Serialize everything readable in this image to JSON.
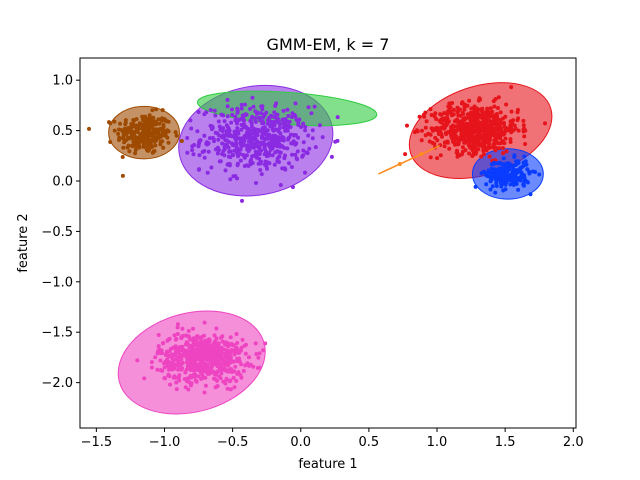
{
  "chart_data": {
    "type": "scatter",
    "title": "GMM-EM, k = 7",
    "xlabel": "feature 1",
    "ylabel": "feature 2",
    "xlim": [
      -1.62,
      2.02
    ],
    "ylim": [
      -2.45,
      1.22
    ],
    "xticks": [
      -1.5,
      -1.0,
      -0.5,
      0.0,
      0.5,
      1.0,
      1.5,
      2.0
    ],
    "xtick_labels": [
      "−1.5",
      "−1.0",
      "−0.5",
      "0.0",
      "0.5",
      "1.0",
      "1.5",
      "2.0"
    ],
    "yticks": [
      -2.0,
      -1.5,
      -1.0,
      -0.5,
      0.0,
      0.5,
      1.0
    ],
    "ytick_labels": [
      "−2.0",
      "−1.5",
      "−1.0",
      "−0.5",
      "0.0",
      "0.5",
      "1.0"
    ],
    "grid": false,
    "legend": false,
    "clusters": [
      {
        "color": "#9e4a00",
        "center": [
          -1.15,
          0.47
        ],
        "spread": [
          0.1,
          0.1
        ],
        "n": 260,
        "ellipse": {
          "center": [
            -1.15,
            0.48
          ],
          "rx": 0.26,
          "ry": 0.26,
          "angle": 0
        }
      },
      {
        "color": "#8a2be2",
        "center": [
          -0.33,
          0.42
        ],
        "spread": [
          0.2,
          0.16
        ],
        "n": 520,
        "ellipse": {
          "center": [
            -0.33,
            0.4
          ],
          "rx": 0.57,
          "ry": 0.54,
          "angle": 10
        }
      },
      {
        "color": "#2ecc40",
        "center": [
          -0.15,
          0.72
        ],
        "spread": [
          0.12,
          0.05
        ],
        "n": 0,
        "ellipse": {
          "center": [
            -0.1,
            0.72
          ],
          "rx": 0.66,
          "ry": 0.16,
          "angle": -4
        }
      },
      {
        "color": "#e6141b",
        "center": [
          1.28,
          0.52
        ],
        "spread": [
          0.16,
          0.12
        ],
        "n": 620,
        "ellipse": {
          "center": [
            1.32,
            0.5
          ],
          "rx": 0.54,
          "ry": 0.44,
          "angle": 18
        }
      },
      {
        "color": "#0a3cff",
        "center": [
          1.52,
          0.07
        ],
        "spread": [
          0.08,
          0.07
        ],
        "n": 240,
        "ellipse": {
          "center": [
            1.52,
            0.07
          ],
          "rx": 0.26,
          "ry": 0.25,
          "angle": 0
        }
      },
      {
        "color": "#ee44c2",
        "center": [
          -0.72,
          -1.75
        ],
        "spread": [
          0.16,
          0.12
        ],
        "n": 620,
        "ellipse": {
          "center": [
            -0.8,
            -1.8
          ],
          "rx": 0.55,
          "ry": 0.49,
          "angle": 15
        }
      },
      {
        "color": "#ff8c1a",
        "center": [
          0.8,
          0.25
        ],
        "spread": [
          0.0,
          0.0
        ],
        "n": 0,
        "segment": [
          [
            0.57,
            0.07
          ],
          [
            1.02,
            0.35
          ]
        ]
      }
    ]
  }
}
